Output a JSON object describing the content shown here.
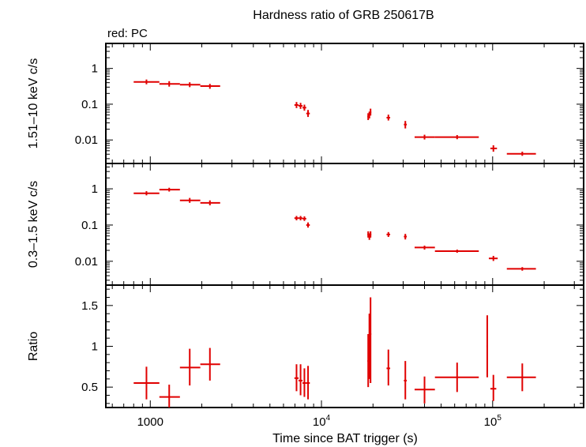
{
  "title": "Hardness ratio of GRB 250617B",
  "legend_label": "red: PC",
  "xlabel": "Time since BAT trigger (s)",
  "colors": {
    "series": "#e00000",
    "frame": "#000000"
  },
  "chart_data": [
    {
      "type": "scatter",
      "name": "hard",
      "ylabel": "1.51–10 keV c/s",
      "xscale": "log",
      "yscale": "log",
      "xlim": [
        550,
        340000
      ],
      "ylim": [
        0.0022,
        5
      ],
      "yticks": [
        {
          "v": 0.01,
          "label": "0.01"
        },
        {
          "v": 0.1,
          "label": "0.1"
        },
        {
          "v": 1,
          "label": "1"
        }
      ],
      "points": [
        {
          "x": 950,
          "xlo": 800,
          "xhi": 1130,
          "y": 0.42,
          "ylo": 0.36,
          "yhi": 0.49
        },
        {
          "x": 1290,
          "xlo": 1130,
          "xhi": 1490,
          "y": 0.37,
          "ylo": 0.31,
          "yhi": 0.44
        },
        {
          "x": 1700,
          "xlo": 1490,
          "xhi": 1960,
          "y": 0.35,
          "ylo": 0.3,
          "yhi": 0.41
        },
        {
          "x": 2230,
          "xlo": 1960,
          "xhi": 2560,
          "y": 0.32,
          "ylo": 0.27,
          "yhi": 0.37
        },
        {
          "x": 7150,
          "xlo": 6950,
          "xhi": 7350,
          "y": 0.095,
          "ylo": 0.078,
          "yhi": 0.115
        },
        {
          "x": 7550,
          "xlo": 7350,
          "xhi": 7750,
          "y": 0.09,
          "ylo": 0.074,
          "yhi": 0.109
        },
        {
          "x": 7950,
          "xlo": 7750,
          "xhi": 8150,
          "y": 0.08,
          "ylo": 0.066,
          "yhi": 0.097
        },
        {
          "x": 8350,
          "xlo": 8150,
          "xhi": 8550,
          "y": 0.055,
          "ylo": 0.044,
          "yhi": 0.069
        },
        {
          "x": 18750,
          "xlo": 18550,
          "xhi": 18950,
          "y": 0.045,
          "ylo": 0.036,
          "yhi": 0.056
        },
        {
          "x": 19050,
          "xlo": 18950,
          "xhi": 19150,
          "y": 0.05,
          "ylo": 0.04,
          "yhi": 0.062
        },
        {
          "x": 19350,
          "xlo": 19150,
          "xhi": 19550,
          "y": 0.06,
          "ylo": 0.048,
          "yhi": 0.075
        },
        {
          "x": 24600,
          "xlo": 24000,
          "xhi": 25200,
          "y": 0.042,
          "ylo": 0.035,
          "yhi": 0.051
        },
        {
          "x": 30900,
          "xlo": 30300,
          "xhi": 31500,
          "y": 0.027,
          "ylo": 0.021,
          "yhi": 0.034
        },
        {
          "x": 40000,
          "xlo": 35000,
          "xhi": 46000,
          "y": 0.012,
          "ylo": 0.0103,
          "yhi": 0.014
        },
        {
          "x": 62000,
          "xlo": 46000,
          "xhi": 83000,
          "y": 0.012,
          "ylo": 0.0105,
          "yhi": 0.0137
        },
        {
          "x": 101000,
          "xlo": 97000,
          "xhi": 106000,
          "y": 0.0058,
          "ylo": 0.0047,
          "yhi": 0.0071
        },
        {
          "x": 149000,
          "xlo": 121000,
          "xhi": 179000,
          "y": 0.0041,
          "ylo": 0.0036,
          "yhi": 0.0047
        }
      ]
    },
    {
      "type": "scatter",
      "name": "soft",
      "ylabel": "0.3–1.5 keV c/s",
      "xscale": "log",
      "yscale": "log",
      "xlim": [
        550,
        340000
      ],
      "ylim": [
        0.0022,
        5
      ],
      "yticks": [
        {
          "v": 0.01,
          "label": "0.01"
        },
        {
          "v": 0.1,
          "label": "0.1"
        },
        {
          "v": 1,
          "label": "1"
        }
      ],
      "points": [
        {
          "x": 950,
          "xlo": 800,
          "xhi": 1130,
          "y": 0.75,
          "ylo": 0.66,
          "yhi": 0.86
        },
        {
          "x": 1290,
          "xlo": 1130,
          "xhi": 1490,
          "y": 0.95,
          "ylo": 0.84,
          "yhi": 1.07
        },
        {
          "x": 1700,
          "xlo": 1490,
          "xhi": 1960,
          "y": 0.48,
          "ylo": 0.41,
          "yhi": 0.56
        },
        {
          "x": 2230,
          "xlo": 1960,
          "xhi": 2560,
          "y": 0.41,
          "ylo": 0.35,
          "yhi": 0.48
        },
        {
          "x": 7150,
          "xlo": 6950,
          "xhi": 7350,
          "y": 0.155,
          "ylo": 0.135,
          "yhi": 0.178
        },
        {
          "x": 7550,
          "xlo": 7350,
          "xhi": 7750,
          "y": 0.155,
          "ylo": 0.135,
          "yhi": 0.178
        },
        {
          "x": 7950,
          "xlo": 7750,
          "xhi": 8150,
          "y": 0.15,
          "ylo": 0.13,
          "yhi": 0.173
        },
        {
          "x": 8350,
          "xlo": 8150,
          "xhi": 8550,
          "y": 0.1,
          "ylo": 0.085,
          "yhi": 0.118
        },
        {
          "x": 18750,
          "xlo": 18550,
          "xhi": 18950,
          "y": 0.055,
          "ylo": 0.045,
          "yhi": 0.067
        },
        {
          "x": 19050,
          "xlo": 18950,
          "xhi": 19150,
          "y": 0.048,
          "ylo": 0.039,
          "yhi": 0.059
        },
        {
          "x": 19350,
          "xlo": 19150,
          "xhi": 19550,
          "y": 0.055,
          "ylo": 0.045,
          "yhi": 0.067
        },
        {
          "x": 24600,
          "xlo": 24000,
          "xhi": 25200,
          "y": 0.055,
          "ylo": 0.047,
          "yhi": 0.064
        },
        {
          "x": 30900,
          "xlo": 30300,
          "xhi": 31500,
          "y": 0.048,
          "ylo": 0.04,
          "yhi": 0.057
        },
        {
          "x": 40000,
          "xlo": 35000,
          "xhi": 46000,
          "y": 0.024,
          "ylo": 0.021,
          "yhi": 0.027
        },
        {
          "x": 62000,
          "xlo": 46000,
          "xhi": 83000,
          "y": 0.019,
          "ylo": 0.0172,
          "yhi": 0.021
        },
        {
          "x": 101000,
          "xlo": 95000,
          "xhi": 107000,
          "y": 0.012,
          "ylo": 0.0102,
          "yhi": 0.0141
        },
        {
          "x": 149000,
          "xlo": 121000,
          "xhi": 179000,
          "y": 0.0062,
          "ylo": 0.0055,
          "yhi": 0.0069
        }
      ]
    },
    {
      "type": "scatter",
      "name": "ratio",
      "ylabel": "Ratio",
      "xscale": "log",
      "yscale": "linear",
      "xlim": [
        550,
        340000
      ],
      "ylim": [
        0.25,
        1.75
      ],
      "yticks": [
        {
          "v": 0.5,
          "label": "0.5"
        },
        {
          "v": 1,
          "label": "1"
        },
        {
          "v": 1.5,
          "label": "1.5"
        }
      ],
      "points": [
        {
          "x": 950,
          "xlo": 800,
          "xhi": 1130,
          "y": 0.55,
          "ylo": 0.35,
          "yhi": 0.75
        },
        {
          "x": 1290,
          "xlo": 1130,
          "xhi": 1490,
          "y": 0.38,
          "ylo": 0.25,
          "yhi": 0.53
        },
        {
          "x": 1700,
          "xlo": 1490,
          "xhi": 1960,
          "y": 0.74,
          "ylo": 0.52,
          "yhi": 0.97
        },
        {
          "x": 2230,
          "xlo": 1960,
          "xhi": 2560,
          "y": 0.78,
          "ylo": 0.58,
          "yhi": 0.98
        },
        {
          "x": 7150,
          "xlo": 6950,
          "xhi": 7350,
          "y": 0.61,
          "ylo": 0.45,
          "yhi": 0.78
        },
        {
          "x": 7550,
          "xlo": 7350,
          "xhi": 7750,
          "y": 0.58,
          "ylo": 0.4,
          "yhi": 0.78
        },
        {
          "x": 7950,
          "xlo": 7750,
          "xhi": 8150,
          "y": 0.55,
          "ylo": 0.38,
          "yhi": 0.73
        },
        {
          "x": 8350,
          "xlo": 8150,
          "xhi": 8550,
          "y": 0.55,
          "ylo": 0.35,
          "yhi": 0.76
        },
        {
          "x": 18750,
          "xlo": 18550,
          "xhi": 18950,
          "y": 0.82,
          "ylo": 0.5,
          "yhi": 1.15
        },
        {
          "x": 19050,
          "xlo": 18950,
          "xhi": 19150,
          "y": 1.0,
          "ylo": 0.6,
          "yhi": 1.4
        },
        {
          "x": 19350,
          "xlo": 19150,
          "xhi": 19550,
          "y": 1.15,
          "ylo": 0.55,
          "yhi": 1.6
        },
        {
          "x": 24600,
          "xlo": 24000,
          "xhi": 25200,
          "y": 0.73,
          "ylo": 0.52,
          "yhi": 0.96
        },
        {
          "x": 30900,
          "xlo": 30300,
          "xhi": 31500,
          "y": 0.58,
          "ylo": 0.35,
          "yhi": 0.82
        },
        {
          "x": 40000,
          "xlo": 35000,
          "xhi": 46000,
          "y": 0.47,
          "ylo": 0.3,
          "yhi": 0.63
        },
        {
          "x": 62000,
          "xlo": 46000,
          "xhi": 83000,
          "y": 0.62,
          "ylo": 0.44,
          "yhi": 0.8
        },
        {
          "x": 93000,
          "xlo": 92000,
          "xhi": 94000,
          "y": 1.0,
          "ylo": 0.62,
          "yhi": 1.38
        },
        {
          "x": 101000,
          "xlo": 97000,
          "xhi": 105000,
          "y": 0.48,
          "ylo": 0.33,
          "yhi": 0.65
        },
        {
          "x": 149000,
          "xlo": 121000,
          "xhi": 179000,
          "y": 0.62,
          "ylo": 0.45,
          "yhi": 0.79
        }
      ]
    }
  ],
  "xticks": [
    {
      "v": 1000,
      "base": "1000",
      "sup": ""
    },
    {
      "v": 10000,
      "base": "10",
      "sup": "4"
    },
    {
      "v": 100000,
      "base": "10",
      "sup": "5"
    }
  ]
}
